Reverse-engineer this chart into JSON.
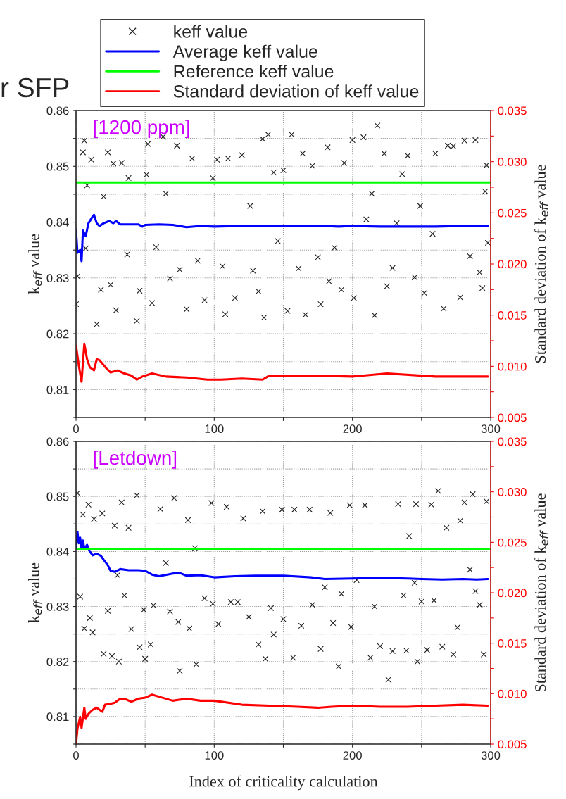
{
  "chart_data": [
    {
      "type": "line",
      "title": "r SFP",
      "ylabel": "k$_{eff}$ value",
      "y2label": "Standard deviation of k$_{eff}$ value",
      "annotations": [
        "[1200 ppm]"
      ],
      "legend": "top",
      "grid": true,
      "xlim": [
        0,
        300
      ],
      "xticks": [
        0,
        {
          "value": 50,
          "label": null
        },
        100,
        {
          "value": 150,
          "label": null
        },
        200,
        {
          "value": 250,
          "label": null
        },
        300
      ],
      "ylim": [
        0.805,
        0.86
      ],
      "yticks": [
        {
          "value": 0.805,
          "label": null
        },
        0.81,
        {
          "value": 0.815,
          "label": null
        },
        0.82,
        {
          "value": 0.825,
          "label": null
        },
        0.83,
        {
          "value": 0.835,
          "label": null
        },
        0.84,
        {
          "value": 0.845,
          "label": null
        },
        0.85,
        {
          "value": 0.855,
          "label": null
        },
        0.86
      ],
      "y2lim": [
        0.005,
        0.035
      ],
      "y2ticks": [
        {
          "value": 0.005,
          "label": "0.005"
        },
        {
          "value": 0.0075,
          "label": null
        },
        {
          "value": 0.01,
          "label": "0.010"
        },
        {
          "value": 0.0125,
          "label": null
        },
        {
          "value": 0.015,
          "label": "0.015"
        },
        {
          "value": 0.0175,
          "label": null
        },
        {
          "value": 0.02,
          "label": "0.020"
        },
        {
          "value": 0.0225,
          "label": null
        },
        {
          "value": 0.025,
          "label": "0.025"
        },
        {
          "value": 0.0275,
          "label": null
        },
        {
          "value": 0.03,
          "label": "0.030"
        },
        {
          "value": 0.0325,
          "label": null
        },
        {
          "value": 0.035,
          "label": "0.035"
        }
      ],
      "ref_lines": [
        {
          "axis": "y",
          "value": 0.8471,
          "label": "Reference keff value",
          "color": "#00ff00"
        }
      ],
      "series": [
        {
          "name": "keff value",
          "type": "scatter",
          "marker": "cross",
          "color": "#222222",
          "x": [
            1,
            0,
            5,
            6,
            7,
            8,
            11,
            15,
            18,
            20,
            23,
            25,
            27,
            29,
            33,
            37,
            38,
            44,
            46,
            51,
            52,
            55,
            58,
            63,
            65,
            68,
            73,
            75,
            80,
            84,
            88,
            93,
            99,
            102,
            106,
            108,
            110,
            115,
            120,
            126,
            128,
            132,
            135,
            136,
            139,
            143,
            146,
            150,
            153,
            156,
            161,
            164,
            166,
            171,
            175,
            177,
            182,
            183,
            187,
            192,
            194,
            200,
            201,
            208,
            210,
            214,
            216,
            218,
            223,
            225,
            229,
            232,
            236,
            240,
            245,
            249,
            252,
            258,
            260,
            266,
            269,
            273,
            278,
            281,
            285,
            289,
            292,
            294,
            296,
            297,
            298
          ],
          "values": [
            0.8303,
            0.8253,
            0.8525,
            0.8546,
            0.8353,
            0.8466,
            0.8512,
            0.8217,
            0.8279,
            0.8446,
            0.8525,
            0.8288,
            0.8505,
            0.8242,
            0.8506,
            0.8342,
            0.8479,
            0.8223,
            0.8277,
            0.8485,
            0.854,
            0.8255,
            0.8355,
            0.8553,
            0.8451,
            0.8299,
            0.8537,
            0.8315,
            0.8244,
            0.8514,
            0.8331,
            0.826,
            0.8479,
            0.8512,
            0.8321,
            0.8235,
            0.8514,
            0.8264,
            0.852,
            0.8429,
            0.8313,
            0.8276,
            0.8549,
            0.8229,
            0.8557,
            0.8489,
            0.8366,
            0.8493,
            0.8241,
            0.8557,
            0.8317,
            0.8523,
            0.8234,
            0.8501,
            0.8337,
            0.8253,
            0.8534,
            0.8294,
            0.8354,
            0.8279,
            0.8506,
            0.8547,
            0.8264,
            0.8552,
            0.8405,
            0.8451,
            0.8233,
            0.8573,
            0.8523,
            0.8285,
            0.8318,
            0.8398,
            0.8486,
            0.8519,
            0.8301,
            0.8429,
            0.8273,
            0.8379,
            0.8523,
            0.8245,
            0.8537,
            0.8536,
            0.8265,
            0.8546,
            0.8339,
            0.8547,
            0.831,
            0.8282,
            0.8455,
            0.8502,
            0.8363
          ]
        },
        {
          "name": "Average keff value",
          "color": "#0000ff",
          "x": [
            0,
            1,
            3,
            4,
            5,
            7,
            9,
            12,
            13,
            15,
            17,
            20,
            24,
            27,
            29,
            32,
            45,
            48,
            50,
            60,
            70,
            80,
            90,
            100,
            120,
            140,
            160,
            180,
            190,
            200,
            220,
            240,
            260,
            280,
            298
          ],
          "values": [
            0.8385,
            0.8345,
            0.835,
            0.833,
            0.8385,
            0.8375,
            0.8398,
            0.841,
            0.8413,
            0.8398,
            0.8393,
            0.8398,
            0.8402,
            0.8398,
            0.8402,
            0.8396,
            0.8396,
            0.8392,
            0.8395,
            0.8396,
            0.8395,
            0.8391,
            0.8393,
            0.8392,
            0.8393,
            0.8393,
            0.8393,
            0.8393,
            0.8392,
            0.8393,
            0.8392,
            0.8392,
            0.8392,
            0.8393,
            0.8393
          ]
        },
        {
          "name": "Standard deviation of keff value",
          "axis": "y2",
          "color": "#ff0000",
          "x": [
            0,
            2,
            4,
            6,
            8,
            10,
            13,
            15,
            17,
            22,
            25,
            30,
            35,
            40,
            44,
            48,
            55,
            65,
            80,
            95,
            105,
            120,
            135,
            140,
            160,
            170,
            200,
            225,
            260,
            298
          ],
          "values": [
            0.012,
            0.0101,
            0.0085,
            0.0122,
            0.0107,
            0.0099,
            0.0096,
            0.0107,
            0.0106,
            0.0098,
            0.0094,
            0.0096,
            0.0093,
            0.0091,
            0.0087,
            0.009,
            0.0093,
            0.009,
            0.0089,
            0.0087,
            0.0087,
            0.0088,
            0.0087,
            0.0091,
            0.0091,
            0.0091,
            0.009,
            0.0093,
            0.009,
            0.009
          ]
        }
      ]
    },
    {
      "type": "line",
      "xlabel": "Index of criticality calculation",
      "ylabel": "k$_{eff}$ value",
      "y2label": "Standard deviation of k$_{eff}$ value",
      "annotations": [
        "[Letdown]"
      ],
      "grid": true,
      "xlim": [
        0,
        300
      ],
      "xticks": [
        0,
        {
          "value": 50,
          "label": null
        },
        100,
        {
          "value": 150,
          "label": null
        },
        200,
        {
          "value": 250,
          "label": null
        },
        300
      ],
      "ylim": [
        0.805,
        0.86
      ],
      "yticks": [
        {
          "value": 0.805,
          "label": null
        },
        0.81,
        {
          "value": 0.815,
          "label": null
        },
        0.82,
        {
          "value": 0.825,
          "label": null
        },
        0.83,
        {
          "value": 0.835,
          "label": null
        },
        0.84,
        {
          "value": 0.845,
          "label": null
        },
        0.85,
        {
          "value": 0.855,
          "label": null
        },
        0.86
      ],
      "y2lim": [
        0.005,
        0.035
      ],
      "y2ticks": [
        {
          "value": 0.005,
          "label": "0.005"
        },
        {
          "value": 0.0075,
          "label": null
        },
        {
          "value": 0.01,
          "label": "0.010"
        },
        {
          "value": 0.0125,
          "label": null
        },
        {
          "value": 0.015,
          "label": "0.015"
        },
        {
          "value": 0.0175,
          "label": null
        },
        {
          "value": 0.02,
          "label": "0.020"
        },
        {
          "value": 0.0225,
          "label": null
        },
        {
          "value": 0.025,
          "label": "0.025"
        },
        {
          "value": 0.0275,
          "label": null
        },
        {
          "value": 0.03,
          "label": "0.030"
        },
        {
          "value": 0.0325,
          "label": null
        },
        {
          "value": 0.035,
          "label": "0.035"
        }
      ],
      "ref_lines": [
        {
          "axis": "y",
          "value": 0.8405,
          "color": "#00ff00"
        }
      ],
      "series": [
        {
          "type": "scatter",
          "marker": "cross",
          "color": "#222222",
          "x": [
            1,
            3,
            5,
            6,
            9,
            10,
            12,
            13,
            19,
            20,
            23,
            26,
            28,
            30,
            31,
            33,
            35,
            38,
            40,
            44,
            46,
            49,
            50,
            54,
            56,
            61,
            65,
            68,
            71,
            74,
            75,
            81,
            82,
            86,
            87,
            93,
            98,
            99,
            103,
            109,
            112,
            117,
            121,
            125,
            132,
            135,
            137,
            141,
            143,
            149,
            150,
            157,
            158,
            163,
            169,
            171,
            177,
            180,
            184,
            186,
            190,
            192,
            198,
            199,
            203,
            209,
            213,
            216,
            220,
            226,
            229,
            233,
            237,
            239,
            241,
            245,
            246,
            247,
            250,
            254,
            257,
            259,
            262,
            265,
            268,
            273,
            276,
            278,
            281,
            285,
            287,
            289,
            292,
            295,
            297
          ],
          "values": [
            0.8506,
            0.8318,
            0.8467,
            0.826,
            0.8485,
            0.8279,
            0.8253,
            0.8459,
            0.8469,
            0.8214,
            0.8292,
            0.821,
            0.8447,
            0.8357,
            0.82,
            0.8489,
            0.832,
            0.8443,
            0.8259,
            0.8502,
            0.8226,
            0.8294,
            0.8205,
            0.8231,
            0.8302,
            0.8477,
            0.8379,
            0.8291,
            0.8497,
            0.8272,
            0.8183,
            0.8457,
            0.826,
            0.8406,
            0.8195,
            0.8315,
            0.8488,
            0.8305,
            0.8268,
            0.8481,
            0.8308,
            0.8308,
            0.846,
            0.8281,
            0.8231,
            0.8473,
            0.8205,
            0.8297,
            0.8249,
            0.8476,
            0.8277,
            0.8207,
            0.8476,
            0.8265,
            0.8476,
            0.8303,
            0.8223,
            0.8335,
            0.847,
            0.827,
            0.8191,
            0.8323,
            0.8484,
            0.8263,
            0.8348,
            0.8484,
            0.8207,
            0.83,
            0.8228,
            0.8167,
            0.8219,
            0.8486,
            0.832,
            0.822,
            0.8428,
            0.8343,
            0.8486,
            0.82,
            0.8309,
            0.8221,
            0.8485,
            0.8311,
            0.851,
            0.8227,
            0.8443,
            0.8213,
            0.8262,
            0.8456,
            0.8489,
            0.8367,
            0.8504,
            0.8328,
            0.8303,
            0.8213,
            0.8491
          ]
        },
        {
          "color": "#0000ff",
          "x": [
            0,
            1,
            2,
            3,
            4,
            5,
            6,
            8,
            10,
            12,
            15,
            18,
            20,
            23,
            25,
            28,
            32,
            38,
            45,
            50,
            55,
            60,
            70,
            75,
            80,
            90,
            100,
            115,
            130,
            150,
            170,
            180,
            200,
            220,
            240,
            250,
            265,
            280,
            290,
            298
          ],
          "values": [
            0.8405,
            0.8436,
            0.8415,
            0.8425,
            0.8405,
            0.842,
            0.8405,
            0.8412,
            0.84,
            0.8393,
            0.8396,
            0.8392,
            0.8385,
            0.8375,
            0.8365,
            0.8363,
            0.8368,
            0.8366,
            0.8366,
            0.8365,
            0.8358,
            0.8355,
            0.836,
            0.8361,
            0.8356,
            0.8357,
            0.8353,
            0.8355,
            0.8356,
            0.8356,
            0.8353,
            0.835,
            0.8351,
            0.8352,
            0.8351,
            0.835,
            0.8349,
            0.835,
            0.8349,
            0.835
          ]
        },
        {
          "axis": "y2",
          "color": "#ff0000",
          "x": [
            0,
            1,
            3,
            4,
            6,
            7,
            9,
            12,
            15,
            19,
            21,
            25,
            28,
            32,
            35,
            40,
            45,
            50,
            55,
            60,
            70,
            80,
            90,
            100,
            120,
            140,
            160,
            175,
            185,
            200,
            220,
            240,
            260,
            280,
            298
          ],
          "values": [
            0.005,
            0.0065,
            0.0077,
            0.0066,
            0.0086,
            0.0075,
            0.008,
            0.0084,
            0.0086,
            0.0082,
            0.0089,
            0.009,
            0.0091,
            0.0095,
            0.0095,
            0.0092,
            0.0095,
            0.0096,
            0.0099,
            0.0097,
            0.0093,
            0.0095,
            0.0093,
            0.0093,
            0.0089,
            0.0088,
            0.0087,
            0.0086,
            0.0087,
            0.0088,
            0.0087,
            0.0087,
            0.0088,
            0.0089,
            0.0088
          ]
        }
      ]
    }
  ]
}
